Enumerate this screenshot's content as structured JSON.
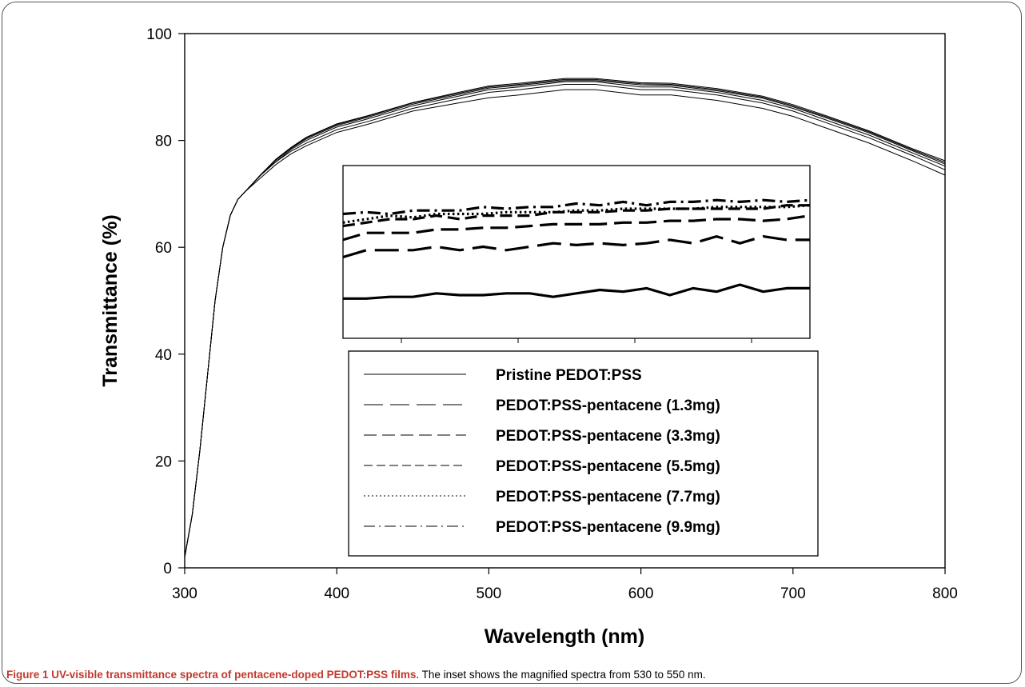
{
  "caption": {
    "bold": "Figure 1 UV-visible transmittance spectra of pentacene-doped PEDOT:PSS films",
    "rest": ". The inset shows the magnified spectra from 530 to 550 nm."
  },
  "chart_data": [
    {
      "type": "line",
      "title": "",
      "xlabel": "Wavelength (nm)",
      "ylabel": "Transmittance (%)",
      "xlim": [
        300,
        800
      ],
      "ylim": [
        0,
        100
      ],
      "xticks": [
        300,
        400,
        500,
        600,
        700,
        800
      ],
      "yticks": [
        0,
        20,
        40,
        60,
        80,
        100
      ],
      "grid": false,
      "legend_position": "lower-center",
      "x": [
        300,
        305,
        310,
        315,
        320,
        325,
        330,
        335,
        340,
        350,
        360,
        370,
        380,
        400,
        420,
        450,
        480,
        500,
        520,
        550,
        570,
        600,
        620,
        650,
        680,
        700,
        720,
        750,
        780,
        800
      ],
      "series": [
        {
          "name": "Pristine PEDOT:PSS",
          "dash": "solid",
          "values": [
            2,
            10,
            22,
            36,
            50,
            60,
            66,
            69,
            70.5,
            73,
            75.5,
            77.5,
            79,
            81.5,
            83,
            85.5,
            87,
            88,
            88.5,
            89.5,
            89.5,
            88.5,
            88.5,
            87.5,
            86,
            84.5,
            82.5,
            79.5,
            76,
            73.5
          ]
        },
        {
          "name": "PEDOT:PSS-pentacene (1.3mg)",
          "dash": "long-dash",
          "values": [
            2,
            10,
            22,
            36,
            50,
            60,
            66,
            69,
            70.5,
            73.5,
            76,
            78,
            79.5,
            82,
            83.5,
            86,
            87.8,
            89,
            89.5,
            90.5,
            90.5,
            89.5,
            89.5,
            88.5,
            87,
            85.5,
            83.5,
            80.5,
            77,
            74.5
          ]
        },
        {
          "name": "PEDOT:PSS-pentacene (3.3mg)",
          "dash": "dash",
          "values": [
            2,
            10,
            22,
            36,
            50,
            60,
            66,
            69,
            70.5,
            73.5,
            76,
            78.3,
            80,
            82.5,
            84,
            86.5,
            88.3,
            89.5,
            90,
            91,
            91,
            90,
            90,
            89,
            87.5,
            86,
            84,
            81,
            77.5,
            75.2
          ]
        },
        {
          "name": "PEDOT:PSS-pentacene (5.5mg)",
          "dash": "short-dash",
          "values": [
            2,
            10,
            22,
            36,
            50,
            60,
            66,
            69,
            70.5,
            73.5,
            76.3,
            78.5,
            80.3,
            82.8,
            84.3,
            86.8,
            88.6,
            89.8,
            90.3,
            91.2,
            91.2,
            90.4,
            90.3,
            89.3,
            87.9,
            86.3,
            84.4,
            81.4,
            77.9,
            75.6
          ]
        },
        {
          "name": "PEDOT:PSS-pentacene (7.7mg)",
          "dash": "dot",
          "values": [
            2,
            10,
            22,
            36,
            50,
            60,
            66,
            69,
            70.5,
            73.6,
            76.4,
            78.6,
            80.5,
            83,
            84.5,
            87,
            88.8,
            90,
            90.5,
            91.4,
            91.4,
            90.6,
            90.5,
            89.5,
            88.1,
            86.5,
            84.6,
            81.6,
            78.1,
            75.9
          ]
        },
        {
          "name": "PEDOT:PSS-pentacene (9.9mg)",
          "dash": "dash-dot",
          "values": [
            2,
            10,
            22,
            36,
            50,
            60,
            66,
            69,
            70.5,
            73.6,
            76.5,
            78.7,
            80.6,
            83.1,
            84.6,
            87.1,
            89,
            90.2,
            90.7,
            91.6,
            91.6,
            90.8,
            90.7,
            89.7,
            88.3,
            86.7,
            84.8,
            81.8,
            78.3,
            76.2
          ]
        }
      ]
    },
    {
      "type": "line",
      "title": "",
      "xlabel": "",
      "ylabel": "",
      "xlim": [
        530,
        550
      ],
      "xticks": [
        532.5,
        537.5,
        542.5,
        547.5
      ],
      "ylim": [
        87,
        92
      ],
      "grid": false,
      "x": [
        530,
        531,
        532,
        533,
        534,
        535,
        536,
        537,
        538,
        539,
        540,
        541,
        542,
        543,
        544,
        545,
        546,
        547,
        548,
        549,
        550
      ],
      "series": [
        {
          "values": [
            88.15,
            88.15,
            88.2,
            88.2,
            88.3,
            88.25,
            88.25,
            88.3,
            88.3,
            88.2,
            88.3,
            88.4,
            88.35,
            88.45,
            88.25,
            88.45,
            88.35,
            88.55,
            88.35,
            88.45,
            88.45
          ]
        },
        {
          "values": [
            89.35,
            89.55,
            89.55,
            89.55,
            89.65,
            89.55,
            89.65,
            89.55,
            89.65,
            89.75,
            89.7,
            89.75,
            89.7,
            89.75,
            89.85,
            89.75,
            89.95,
            89.75,
            89.95,
            89.85,
            89.85
          ]
        },
        {
          "values": [
            89.85,
            90.05,
            90.05,
            90.05,
            90.15,
            90.15,
            90.2,
            90.2,
            90.25,
            90.3,
            90.3,
            90.3,
            90.35,
            90.35,
            90.4,
            90.4,
            90.45,
            90.45,
            90.4,
            90.45,
            90.55
          ]
        },
        {
          "values": [
            90.25,
            90.35,
            90.45,
            90.45,
            90.55,
            90.45,
            90.55,
            90.55,
            90.55,
            90.65,
            90.65,
            90.65,
            90.7,
            90.7,
            90.75,
            90.75,
            90.75,
            90.75,
            90.75,
            90.85,
            90.85
          ]
        },
        {
          "values": [
            90.35,
            90.45,
            90.55,
            90.5,
            90.6,
            90.6,
            90.6,
            90.65,
            90.65,
            90.65,
            90.7,
            90.7,
            90.75,
            90.75,
            90.75,
            90.75,
            90.8,
            90.8,
            90.8,
            90.8,
            90.85
          ]
        },
        {
          "values": [
            90.6,
            90.65,
            90.6,
            90.7,
            90.7,
            90.7,
            90.8,
            90.75,
            90.8,
            90.8,
            90.9,
            90.85,
            90.95,
            90.85,
            90.95,
            90.95,
            91.0,
            90.95,
            91.0,
            90.95,
            91.0
          ]
        }
      ]
    }
  ]
}
